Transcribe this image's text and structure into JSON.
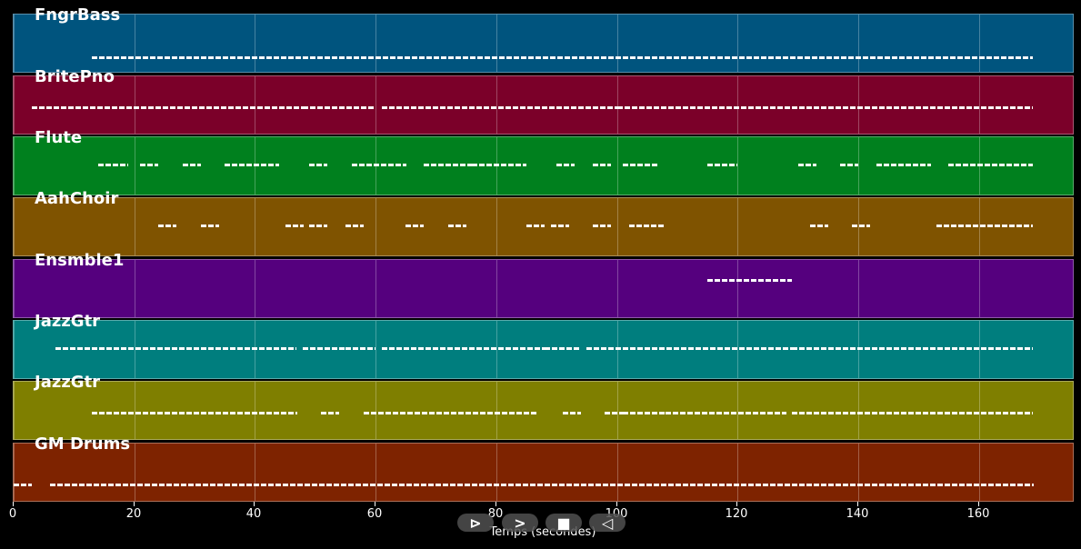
{
  "chart_data": {
    "type": "piano-roll",
    "title": "",
    "xlabel": "Temps (secondes)",
    "ylabel": "",
    "xlim": [
      0,
      176
    ],
    "xticks": [
      0,
      20,
      40,
      60,
      80,
      100,
      120,
      140,
      160
    ],
    "grid": true,
    "tracks": [
      {
        "name": "FngrBass",
        "color": "#00547e",
        "segments": [
          [
            13,
            169
          ]
        ],
        "note_y": 0.7
      },
      {
        "name": "BritePno",
        "color": "#7b0029",
        "segments": [
          [
            3,
            48
          ],
          [
            48,
            60
          ],
          [
            61,
            100
          ],
          [
            100,
            129
          ],
          [
            129,
            169
          ]
        ],
        "note_y": 0.5
      },
      {
        "name": "Flute",
        "color": "#00801e",
        "segments": [
          [
            14,
            19
          ],
          [
            21,
            24
          ],
          [
            28,
            31
          ],
          [
            35,
            44
          ],
          [
            49,
            52
          ],
          [
            56,
            65
          ],
          [
            68,
            76
          ],
          [
            76,
            85
          ],
          [
            90,
            93
          ],
          [
            96,
            99
          ],
          [
            101,
            107
          ],
          [
            115,
            120
          ],
          [
            130,
            133
          ],
          [
            137,
            140
          ],
          [
            143,
            152
          ],
          [
            155,
            169
          ]
        ],
        "note_y": 0.45
      },
      {
        "name": "AahChoir",
        "color": "#7f5300",
        "segments": [
          [
            24,
            27
          ],
          [
            31,
            34
          ],
          [
            45,
            48
          ],
          [
            49,
            52
          ],
          [
            55,
            58
          ],
          [
            65,
            68
          ],
          [
            72,
            75
          ],
          [
            85,
            88
          ],
          [
            89,
            92
          ],
          [
            96,
            99
          ],
          [
            102,
            108
          ],
          [
            132,
            135
          ],
          [
            139,
            142
          ],
          [
            153,
            169
          ]
        ],
        "note_y": 0.45
      },
      {
        "name": "Ensmble1",
        "color": "#55007e",
        "segments": [
          [
            115,
            129
          ]
        ],
        "note_y": 0.32
      },
      {
        "name": "JazzGtr",
        "color": "#007e7e",
        "segments": [
          [
            7,
            47
          ],
          [
            48,
            55
          ],
          [
            55,
            60
          ],
          [
            61,
            88
          ],
          [
            88,
            94
          ],
          [
            95,
            101
          ],
          [
            101,
            129
          ],
          [
            129,
            169
          ]
        ],
        "note_y": 0.45
      },
      {
        "name": "JazzGtr",
        "color": "#7f7f00",
        "segments": [
          [
            13,
            47
          ],
          [
            51,
            54
          ],
          [
            58,
            87
          ],
          [
            91,
            94
          ],
          [
            98,
            101
          ],
          [
            101,
            108
          ],
          [
            108,
            128
          ],
          [
            129,
            169
          ]
        ],
        "note_y": 0.5
      },
      {
        "name": "GM Drums",
        "color": "#7e2300",
        "segments": [
          [
            0,
            3
          ],
          [
            6,
            169
          ]
        ],
        "note_y": 0.68
      }
    ]
  },
  "axis": {
    "tick_labels": [
      "0",
      "20",
      "40",
      "60",
      "80",
      "100",
      "120",
      "140",
      "160"
    ],
    "xlabel": "Temps (secondes)"
  },
  "controls": [
    {
      "name": "play-icon",
      "glyph": "⊳"
    },
    {
      "name": "forward-icon",
      "glyph": ">"
    },
    {
      "name": "stop-icon",
      "glyph": "■"
    },
    {
      "name": "rewind-icon",
      "glyph": "◁"
    }
  ]
}
